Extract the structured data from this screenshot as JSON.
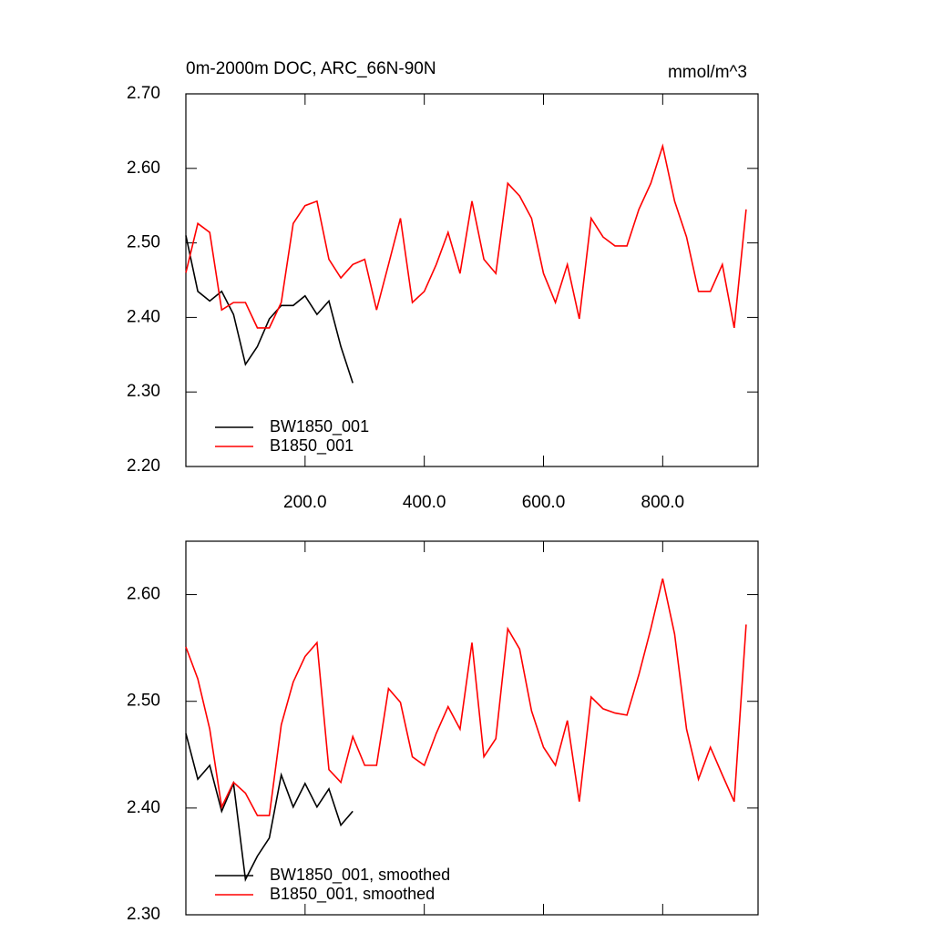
{
  "chart_data": [
    {
      "type": "line",
      "title": "0m-2000m DOC, ARC_66N-90N",
      "right_title": "mmol/m^3",
      "x": [
        0,
        20,
        40,
        60,
        80,
        100,
        120,
        140,
        160,
        180,
        200,
        220,
        240,
        260,
        280,
        300,
        320,
        340,
        360,
        380,
        400,
        420,
        440,
        460,
        480,
        500,
        520,
        540,
        560,
        580,
        600,
        620,
        640,
        660,
        680,
        700,
        720,
        740,
        760,
        780,
        800,
        820,
        840,
        860,
        880,
        900,
        920,
        940
      ],
      "series": [
        {
          "name": "BW1850_001",
          "color": "#000000",
          "values": [
            2.51,
            2.435,
            2.422,
            2.435,
            2.404,
            2.337,
            2.361,
            2.398,
            2.416,
            2.416,
            2.429,
            2.404,
            2.422,
            2.361,
            2.312,
            null,
            null,
            null,
            null,
            null,
            null,
            null,
            null,
            null,
            null,
            null,
            null,
            null,
            null,
            null,
            null,
            null,
            null,
            null,
            null,
            null,
            null,
            null,
            null,
            null,
            null,
            null,
            null,
            null,
            null,
            null,
            null,
            null
          ]
        },
        {
          "name": "B1850_001",
          "color": "#ff0000",
          "values": [
            2.46,
            2.526,
            2.514,
            2.41,
            2.42,
            2.42,
            2.386,
            2.386,
            2.42,
            2.526,
            2.55,
            2.556,
            2.478,
            2.453,
            2.471,
            2.478,
            2.41,
            2.471,
            2.533,
            2.42,
            2.435,
            2.471,
            2.514,
            2.459,
            2.556,
            2.478,
            2.459,
            2.58,
            2.563,
            2.533,
            2.459,
            2.42,
            2.471,
            2.398,
            2.533,
            2.508,
            2.496,
            2.496,
            2.545,
            2.58,
            2.63,
            2.556,
            2.508,
            2.435,
            2.435,
            2.471,
            2.386,
            2.545
          ]
        }
      ],
      "xlim": [
        0,
        960
      ],
      "xticks": [
        {
          "value": 200,
          "label": "200.0"
        },
        {
          "value": 400,
          "label": "400.0"
        },
        {
          "value": 600,
          "label": "600.0"
        },
        {
          "value": 800,
          "label": "800.0"
        }
      ],
      "ylim": [
        2.2,
        2.7
      ],
      "yticks": [
        {
          "value": 2.2,
          "label": "2.20"
        },
        {
          "value": 2.3,
          "label": "2.30"
        },
        {
          "value": 2.4,
          "label": "2.40"
        },
        {
          "value": 2.5,
          "label": "2.50"
        },
        {
          "value": 2.6,
          "label": "2.60"
        },
        {
          "value": 2.7,
          "label": "2.70"
        }
      ],
      "legend": "lower left",
      "grid": false
    },
    {
      "type": "line",
      "x": [
        0,
        20,
        40,
        60,
        80,
        100,
        120,
        140,
        160,
        180,
        200,
        220,
        240,
        260,
        280,
        300,
        320,
        340,
        360,
        380,
        400,
        420,
        440,
        460,
        480,
        500,
        520,
        540,
        560,
        580,
        600,
        620,
        640,
        660,
        680,
        700,
        720,
        740,
        760,
        780,
        800,
        820,
        840,
        860,
        880,
        900,
        920,
        940
      ],
      "series": [
        {
          "name": "BW1850_001, smoothed",
          "color": "#000000",
          "values": [
            2.47,
            2.427,
            2.44,
            2.397,
            2.423,
            2.333,
            2.355,
            2.372,
            2.431,
            2.401,
            2.423,
            2.401,
            2.418,
            2.384,
            2.397,
            null,
            null,
            null,
            null,
            null,
            null,
            null,
            null,
            null,
            null,
            null,
            null,
            null,
            null,
            null,
            null,
            null,
            null,
            null,
            null,
            null,
            null,
            null,
            null,
            null,
            null,
            null,
            null,
            null,
            null,
            null,
            null,
            null
          ]
        },
        {
          "name": "B1850_001, smoothed",
          "color": "#ff0000",
          "values": [
            2.551,
            2.521,
            2.474,
            2.401,
            2.424,
            2.414,
            2.393,
            2.393,
            2.478,
            2.518,
            2.542,
            2.555,
            2.436,
            2.424,
            2.467,
            2.44,
            2.44,
            2.512,
            2.499,
            2.448,
            2.44,
            2.47,
            2.495,
            2.474,
            2.555,
            2.448,
            2.465,
            2.568,
            2.549,
            2.491,
            2.457,
            2.44,
            2.482,
            2.406,
            2.504,
            2.493,
            2.489,
            2.487,
            2.525,
            2.568,
            2.615,
            2.563,
            2.474,
            2.427,
            2.457,
            2.431,
            2.406,
            2.572
          ]
        }
      ],
      "xlim": [
        0,
        960
      ],
      "xticks": [
        200,
        400,
        600,
        800
      ],
      "ylim": [
        2.3,
        2.65
      ],
      "yticks": [
        {
          "value": 2.3,
          "label": "2.30"
        },
        {
          "value": 2.4,
          "label": "2.40"
        },
        {
          "value": 2.5,
          "label": "2.50"
        },
        {
          "value": 2.6,
          "label": "2.60"
        }
      ],
      "legend": "lower left",
      "grid": false
    }
  ]
}
